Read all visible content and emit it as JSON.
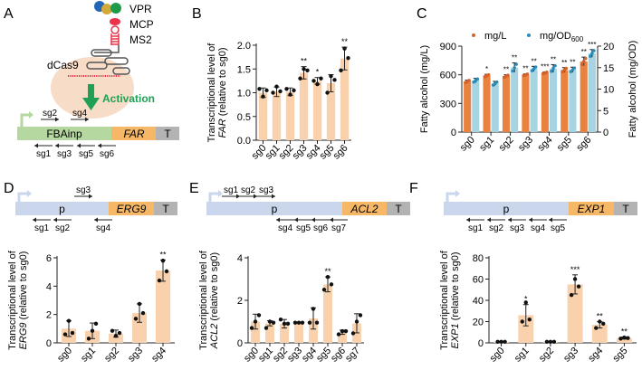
{
  "panel_labels": [
    "A",
    "B",
    "C",
    "D",
    "E",
    "F"
  ],
  "colors": {
    "bar_peach": "#f9d2ad",
    "bar_orange": "#e8823e",
    "bar_blue": "#a6d4e3",
    "dot_orange": "#d4622a",
    "dot_blue": "#2a8cb8",
    "promoter_green": "#b5d7a0",
    "promoter_blue": "#c9d6ec",
    "gene_orange": "#f6b866",
    "terminator_gray": "#b3b3b3",
    "activation_green": "#1fa055",
    "halo": "#f7dcc8",
    "rna_red": "#e8334a"
  },
  "panel_a": {
    "labels": {
      "vpr": "VPR",
      "mcp": "MCP",
      "ms2": "MS2",
      "dcas9": "dCas9",
      "activation": "Activation"
    },
    "construct": {
      "promoter": "FBAinp",
      "gene": "FAR",
      "terminator": "T"
    },
    "sgrnas_forward": [
      "sg2",
      "sg4"
    ],
    "sgrnas_reverse": [
      "sg1",
      "sg3",
      "sg5",
      "sg6"
    ]
  },
  "panel_d_construct": {
    "promoter": "p",
    "gene": "ERG9",
    "terminator": "T",
    "forward": [
      "sg3"
    ],
    "reverse": [
      "sg1",
      "sg2",
      "sg4"
    ]
  },
  "panel_e_construct": {
    "promoter": "p",
    "gene": "ACL2",
    "terminator": "T",
    "forward": [
      "sg1",
      "sg2",
      "sg3"
    ],
    "reverse": [
      "sg4",
      "sg5",
      "sg6",
      "sg7"
    ]
  },
  "panel_f_construct": {
    "promoter": "p",
    "gene": "EXP1",
    "terminator": "T",
    "forward": [],
    "reverse": [
      "sg1",
      "sg2",
      "sg3",
      "sg4",
      "sg5"
    ]
  },
  "chart_data": [
    {
      "id": "B",
      "type": "bar",
      "ylabel_line1": "Transcriptional level of",
      "ylabel_gene": "FAR",
      "ylabel_rest": " (relative to sg0)",
      "categories": [
        "sg0",
        "sg1",
        "sg2",
        "sg3",
        "sg4",
        "sg5",
        "sg6"
      ],
      "values": [
        1.0,
        1.02,
        1.02,
        1.42,
        1.25,
        1.2,
        1.72
      ],
      "errors": [
        0.1,
        0.1,
        0.08,
        0.13,
        0.07,
        0.18,
        0.24
      ],
      "points": [
        [
          1.08,
          0.92,
          1.05
        ],
        [
          1.0,
          1.13,
          1.03
        ],
        [
          1.08,
          0.96,
          1.05
        ],
        [
          1.3,
          1.5,
          1.47
        ],
        [
          1.25,
          1.18,
          1.3
        ],
        [
          1.0,
          1.35,
          1.27
        ],
        [
          1.47,
          1.93,
          1.73
        ]
      ],
      "significance": [
        "",
        "",
        "",
        "**",
        "*",
        "",
        "**"
      ],
      "ylim": [
        0,
        2.0
      ],
      "yticks": [
        "0.0",
        "0.5",
        "1.0",
        "1.5",
        "2.0"
      ]
    },
    {
      "id": "C",
      "type": "bar",
      "ylabel_left": "Fatty alcohol (mg/L)",
      "ylabel_right": "Fatty alcohol (mg/OD)",
      "legend": [
        {
          "name": "mg/L"
        },
        {
          "name": "mg/OD",
          "sub": "600"
        }
      ],
      "legend_position": "top",
      "categories": [
        "sg0",
        "sg1",
        "sg2",
        "sg3",
        "sg4",
        "sg5",
        "sg6"
      ],
      "series": [
        {
          "name": "mg/L",
          "axis": "left",
          "values": [
            530,
            590,
            585,
            600,
            620,
            650,
            740
          ],
          "errors": [
            15,
            15,
            15,
            10,
            10,
            25,
            45
          ],
          "significance": [
            "",
            "*",
            "**",
            "**",
            "***",
            "**",
            "**"
          ]
        },
        {
          "name": "mg/OD600",
          "axis": "right",
          "values": [
            12.0,
            11.3,
            15.0,
            14.7,
            14.8,
            14.5,
            18.3
          ],
          "errors": [
            0.5,
            0.5,
            1.1,
            0.6,
            0.9,
            0.6,
            0.9
          ],
          "significance": [
            "",
            "",
            "**",
            "**",
            "**",
            "**",
            "***"
          ]
        }
      ],
      "ylim_left": [
        0,
        900
      ],
      "yticks_left": [
        "0",
        "300",
        "600",
        "900"
      ],
      "ylim_right": [
        0,
        20
      ],
      "yticks_right": [
        "0",
        "5",
        "10",
        "15",
        "20"
      ]
    },
    {
      "id": "D",
      "type": "bar",
      "ylabel_line1": "Transcriptional level of",
      "ylabel_gene": "ERG9",
      "ylabel_rest": " (relative to sg0)",
      "categories": [
        "sg0",
        "sg1",
        "sg2",
        "sg3",
        "sg4"
      ],
      "values": [
        1.0,
        0.85,
        0.65,
        2.1,
        5.1
      ],
      "errors": [
        0.55,
        0.55,
        0.25,
        0.65,
        0.75
      ],
      "points": [
        [
          0.6,
          1.55,
          0.7
        ],
        [
          0.3,
          0.85,
          1.35
        ],
        [
          0.85,
          0.5,
          0.7
        ],
        [
          1.7,
          2.75,
          2.1
        ],
        [
          4.4,
          5.8,
          5.05
        ]
      ],
      "significance": [
        "",
        "",
        "",
        "",
        "**"
      ],
      "ylim": [
        0,
        6
      ],
      "yticks": [
        "0",
        "2",
        "4",
        "6"
      ]
    },
    {
      "id": "E",
      "type": "bar",
      "ylabel_line1": "Transcriptional level of",
      "ylabel_gene": "ACL2",
      "ylabel_rest": " (relative to sg0)",
      "categories": [
        "sg0",
        "sg1",
        "sg2",
        "sg3",
        "sg4",
        "sg5",
        "sg6",
        "sg7"
      ],
      "values": [
        1.0,
        0.92,
        0.9,
        0.95,
        1.15,
        2.75,
        0.5,
        0.92
      ],
      "errors": [
        0.35,
        0.12,
        0.2,
        0.02,
        0.5,
        0.35,
        0.1,
        0.45
      ],
      "points": [
        [
          0.7,
          1.0,
          1.3
        ],
        [
          0.7,
          1.0,
          0.95
        ],
        [
          1.1,
          0.9,
          0.9
        ],
        [
          0.95,
          0.95,
          0.95
        ],
        [
          0.95,
          1.6,
          0.95
        ],
        [
          2.5,
          3.1,
          2.75
        ],
        [
          0.4,
          0.55,
          0.55
        ],
        [
          0.45,
          1.0,
          1.3
        ]
      ],
      "significance": [
        "",
        "",
        "",
        "",
        "",
        "**",
        "",
        ""
      ],
      "ylim": [
        0,
        4
      ],
      "yticks": [
        "0",
        "2",
        "4"
      ]
    },
    {
      "id": "F",
      "type": "bar",
      "ylabel_line1": "Transcriptional level of",
      "ylabel_gene": "EXP1",
      "ylabel_rest": " (relative to sg0)",
      "categories": [
        "sg0",
        "sg1",
        "sg2",
        "sg3",
        "sg4",
        "sg5"
      ],
      "values": [
        1.0,
        26,
        1.0,
        55,
        17,
        4.5
      ],
      "errors": [
        0.3,
        10,
        0.3,
        9,
        3,
        1
      ],
      "points": [
        [
          1,
          1,
          1
        ],
        [
          20,
          38,
          22
        ],
        [
          1,
          1,
          1
        ],
        [
          45,
          60,
          53
        ],
        [
          14,
          20,
          18
        ],
        [
          4,
          5,
          4.5
        ]
      ],
      "significance": [
        "",
        "*",
        "",
        "***",
        "**",
        "**"
      ],
      "ylim": [
        0,
        80
      ],
      "yticks": [
        "0",
        "20",
        "40",
        "60",
        "80"
      ]
    }
  ]
}
